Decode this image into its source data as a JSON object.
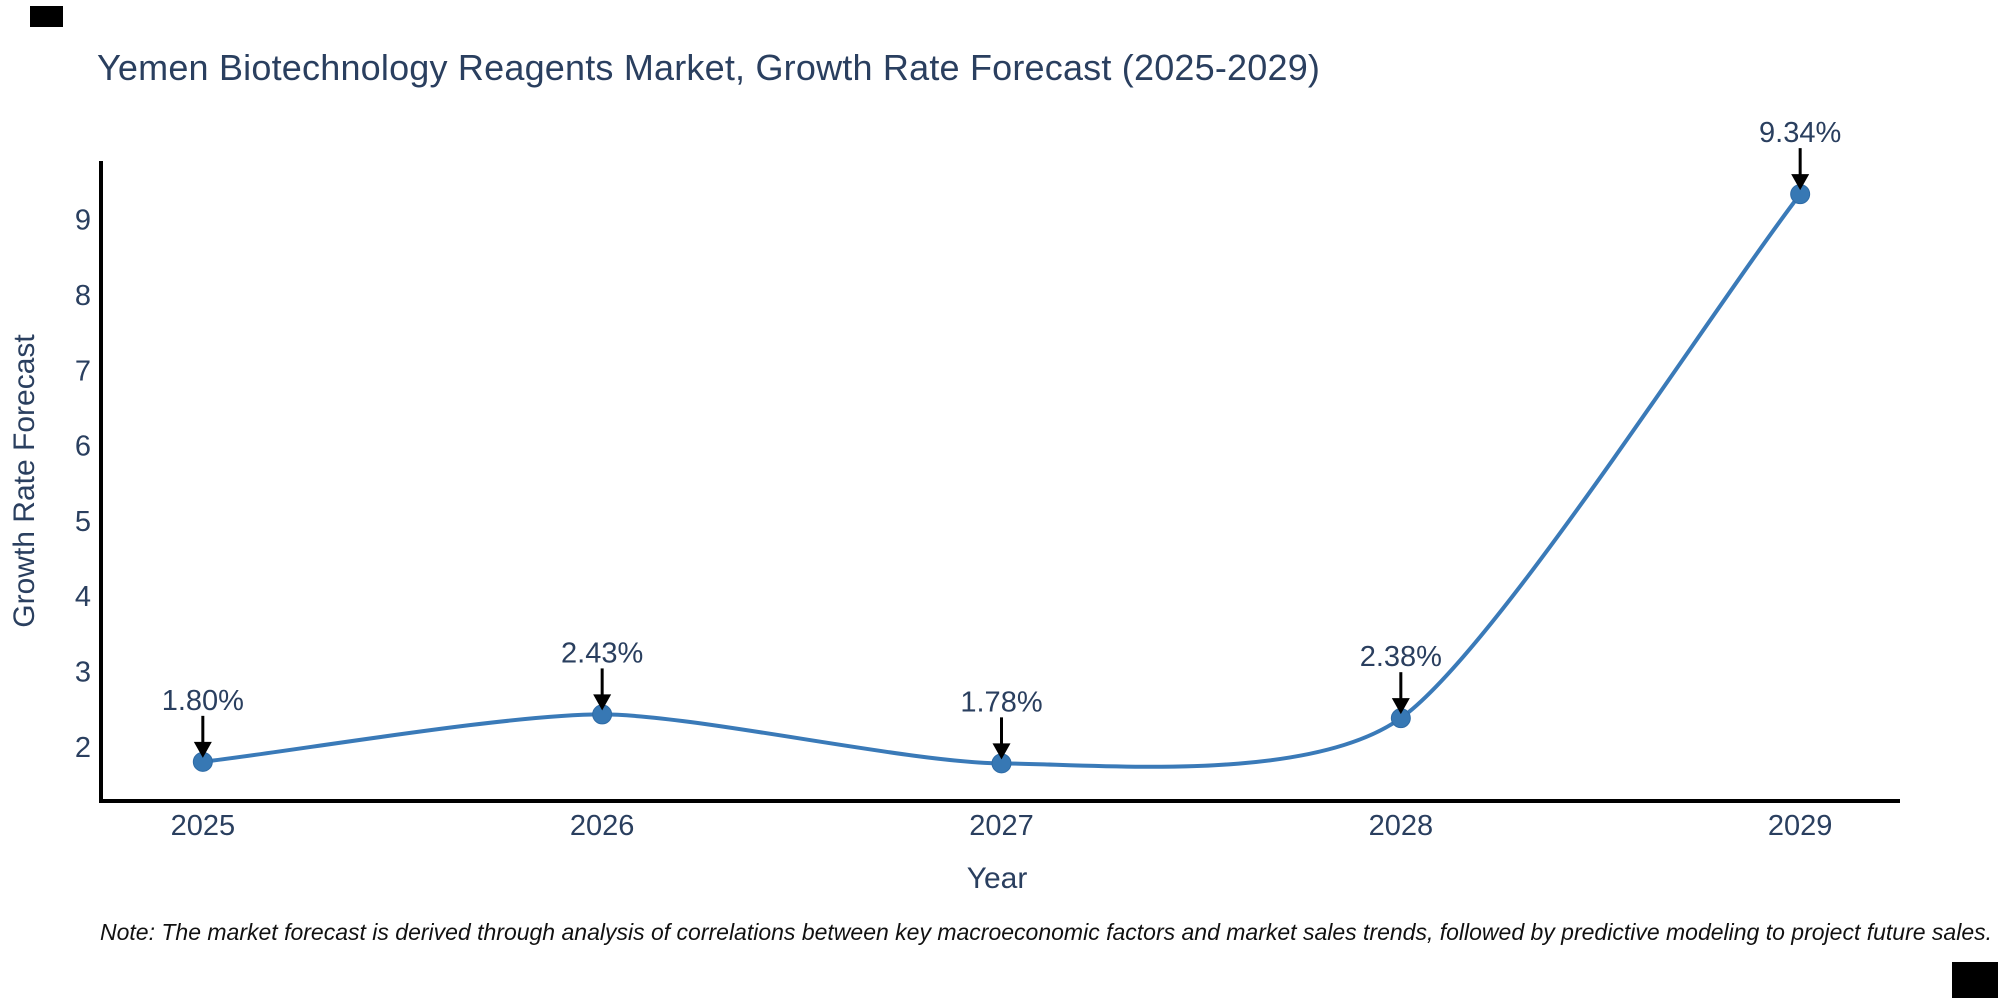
{
  "title": "Yemen Biotechnology Reagents Market, Growth Rate Forecast (2025-2029)",
  "note": "Note: The market forecast is derived through analysis of correlations between key macroeconomic factors and market sales trends, followed by predictive modeling to project future sales.",
  "chart_data": {
    "type": "line",
    "title": "Yemen Biotechnology Reagents Market, Growth Rate Forecast (2025-2029)",
    "xlabel": "Year",
    "ylabel": "Growth Rate Forecast",
    "x": [
      2025,
      2026,
      2027,
      2028,
      2029
    ],
    "values": [
      1.8,
      2.43,
      1.78,
      2.38,
      9.34
    ],
    "point_labels": [
      "1.80%",
      "2.43%",
      "1.78%",
      "2.38%",
      "9.34%"
    ],
    "xticks": [
      "2025",
      "2026",
      "2027",
      "2028",
      "2029"
    ],
    "yticks": [
      2,
      3,
      4,
      5,
      6,
      7,
      8,
      9
    ],
    "xlim": [
      2024.74,
      2029.25
    ],
    "ylim": [
      1.28,
      9.78
    ],
    "grid": false,
    "legend": "none",
    "line_shape": "spline",
    "colors": {
      "line": "#3a7ab8",
      "marker_fill": "#3778b4",
      "marker_edge": "#2e6ba6",
      "arrow": "#000000",
      "axis": "#000000",
      "text": "#2a3f5f",
      "note_text": "#111111"
    }
  }
}
